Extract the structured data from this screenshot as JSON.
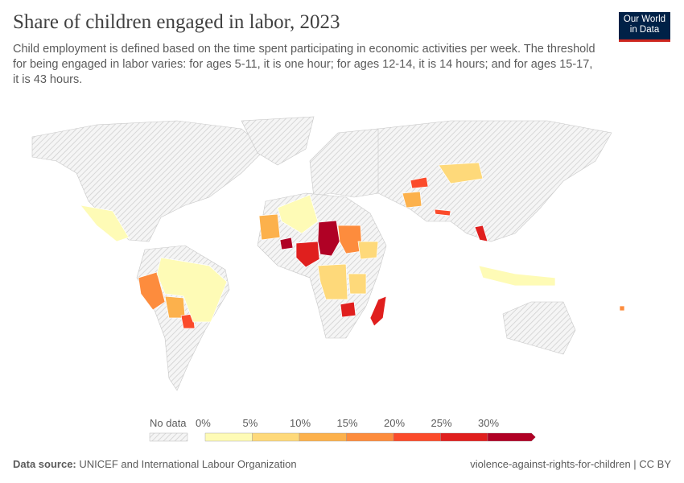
{
  "title": "Share of children engaged in labor, 2023",
  "subtitle": "Child employment is defined based on the time spent participating in economic activities per week. The threshold for being engaged in labor varies: for ages 5-11, it is one hour; for ages 12-14, it is 14 hours; and for ages 15-17, it is 43 hours.",
  "logo": {
    "line1": "Our World",
    "line2": "in Data",
    "bg": "#002147",
    "accent": "#ce261e"
  },
  "legend": {
    "no_data_label": "No data",
    "ticks": [
      "0%",
      "5%",
      "10%",
      "15%",
      "20%",
      "25%",
      "30%"
    ],
    "colors": [
      "#fefbb6",
      "#fed97a",
      "#fcb14c",
      "#fd8c3d",
      "#fb4b2b",
      "#e01f1e",
      "#b00125"
    ]
  },
  "map_data": [
    {
      "country": "Chad",
      "bin": 6
    },
    {
      "country": "Burkina Faso",
      "bin": 6
    },
    {
      "country": "Nigeria",
      "bin": 5
    },
    {
      "country": "Madagascar",
      "bin": 5
    },
    {
      "country": "Zimbabwe",
      "bin": 5
    },
    {
      "country": "Laos",
      "bin": 5
    },
    {
      "country": "Sudan",
      "bin": 3
    },
    {
      "country": "Mauritania",
      "bin": 2
    },
    {
      "country": "Peru",
      "bin": 3
    },
    {
      "country": "Bolivia",
      "bin": 2
    },
    {
      "country": "Paraguay",
      "bin": 4
    },
    {
      "country": "Afghanistan",
      "bin": 2
    },
    {
      "country": "Kyrgyzstan",
      "bin": 4
    },
    {
      "country": "Nepal",
      "bin": 4
    },
    {
      "country": "Brazil",
      "bin": 0
    },
    {
      "country": "Mexico",
      "bin": 0
    },
    {
      "country": "Algeria",
      "bin": 0
    },
    {
      "country": "Mongolia",
      "bin": 1
    },
    {
      "country": "DR Congo",
      "bin": 1
    },
    {
      "country": "Tanzania",
      "bin": 1
    },
    {
      "country": "Ethiopia",
      "bin": 1
    },
    {
      "country": "Indonesia",
      "bin": 0
    },
    {
      "country": "Vanuatu",
      "bin": 3
    }
  ],
  "footer": {
    "source_label": "Data source:",
    "source": "UNICEF and International Labour Organization",
    "right": "violence-against-rights-for-children | CC BY"
  }
}
